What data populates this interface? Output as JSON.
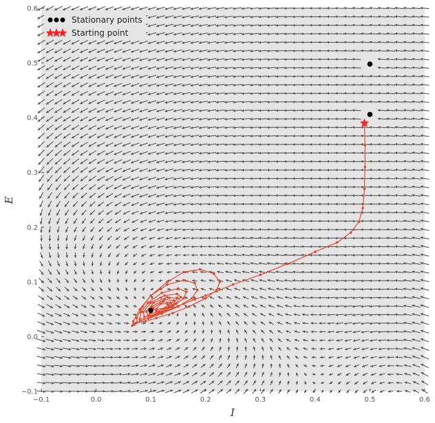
{
  "chart_data": {
    "type": "scatter",
    "title": "",
    "xlabel": "I",
    "ylabel": "E",
    "xlim": [
      -0.1,
      0.6
    ],
    "ylim": [
      -0.1,
      0.6
    ],
    "xticks": [
      "−0.1",
      "0.0",
      "0.1",
      "0.2",
      "0.3",
      "0.4",
      "0.5",
      "0.6"
    ],
    "yticks": [
      "−0.1",
      "0.0",
      "0.1",
      "0.2",
      "0.3",
      "0.4",
      "0.5",
      "0.6"
    ],
    "grid": false,
    "legend_position": "top-left",
    "series": [
      {
        "name": "Stationary points",
        "marker": "circle",
        "color": "#000000",
        "points": [
          [
            0.1,
            0.048
          ],
          [
            0.5,
            0.406
          ],
          [
            0.5,
            0.498
          ]
        ]
      },
      {
        "name": "Starting point",
        "marker": "star",
        "color": "#ff2020",
        "points": [
          [
            0.49,
            0.39
          ]
        ]
      },
      {
        "name": "",
        "marker": "dot-line",
        "color": "#e24a33",
        "points": [
          [
            0.49,
            0.39
          ],
          [
            0.491,
            0.35
          ],
          [
            0.491,
            0.31
          ],
          [
            0.49,
            0.27
          ],
          [
            0.487,
            0.235
          ],
          [
            0.48,
            0.21
          ],
          [
            0.465,
            0.19
          ],
          [
            0.44,
            0.172
          ],
          [
            0.4,
            0.155
          ],
          [
            0.35,
            0.133
          ],
          [
            0.3,
            0.113
          ],
          [
            0.25,
            0.095
          ],
          [
            0.22,
            0.083
          ],
          [
            0.2,
            0.075
          ],
          [
            0.18,
            0.068
          ],
          [
            0.16,
            0.06
          ],
          [
            0.14,
            0.052
          ],
          [
            0.12,
            0.044
          ],
          [
            0.1,
            0.036
          ],
          [
            0.08,
            0.028
          ],
          [
            0.07,
            0.022
          ],
          [
            0.066,
            0.02
          ],
          [
            0.068,
            0.028
          ],
          [
            0.08,
            0.05
          ],
          [
            0.1,
            0.075
          ],
          [
            0.13,
            0.1
          ],
          [
            0.16,
            0.118
          ],
          [
            0.19,
            0.123
          ],
          [
            0.215,
            0.115
          ],
          [
            0.226,
            0.1
          ],
          [
            0.22,
            0.085
          ],
          [
            0.2,
            0.07
          ],
          [
            0.17,
            0.055
          ],
          [
            0.14,
            0.043
          ],
          [
            0.11,
            0.034
          ],
          [
            0.09,
            0.028
          ],
          [
            0.075,
            0.026
          ],
          [
            0.074,
            0.034
          ],
          [
            0.085,
            0.055
          ],
          [
            0.1,
            0.075
          ],
          [
            0.13,
            0.095
          ],
          [
            0.16,
            0.103
          ],
          [
            0.18,
            0.098
          ],
          [
            0.185,
            0.085
          ],
          [
            0.175,
            0.07
          ],
          [
            0.15,
            0.055
          ],
          [
            0.12,
            0.042
          ],
          [
            0.095,
            0.033
          ],
          [
            0.08,
            0.032
          ],
          [
            0.082,
            0.045
          ],
          [
            0.095,
            0.062
          ],
          [
            0.12,
            0.08
          ],
          [
            0.15,
            0.088
          ],
          [
            0.165,
            0.082
          ],
          [
            0.16,
            0.07
          ],
          [
            0.14,
            0.055
          ],
          [
            0.11,
            0.04
          ],
          [
            0.088,
            0.036
          ],
          [
            0.086,
            0.045
          ],
          [
            0.1,
            0.062
          ],
          [
            0.125,
            0.075
          ],
          [
            0.148,
            0.078
          ],
          [
            0.155,
            0.072
          ],
          [
            0.145,
            0.06
          ],
          [
            0.12,
            0.045
          ],
          [
            0.095,
            0.038
          ],
          [
            0.092,
            0.046
          ],
          [
            0.105,
            0.062
          ],
          [
            0.13,
            0.072
          ],
          [
            0.148,
            0.07
          ],
          [
            0.14,
            0.058
          ],
          [
            0.115,
            0.045
          ],
          [
            0.098,
            0.042
          ],
          [
            0.102,
            0.055
          ],
          [
            0.125,
            0.068
          ],
          [
            0.142,
            0.066
          ],
          [
            0.133,
            0.055
          ],
          [
            0.11,
            0.046
          ],
          [
            0.104,
            0.052
          ],
          [
            0.122,
            0.064
          ],
          [
            0.136,
            0.062
          ],
          [
            0.125,
            0.052
          ],
          [
            0.11,
            0.05
          ],
          [
            0.118,
            0.06
          ],
          [
            0.13,
            0.06
          ]
        ]
      }
    ],
    "vector_field": {
      "color": "#555555",
      "background": "#e5e5e5"
    }
  }
}
